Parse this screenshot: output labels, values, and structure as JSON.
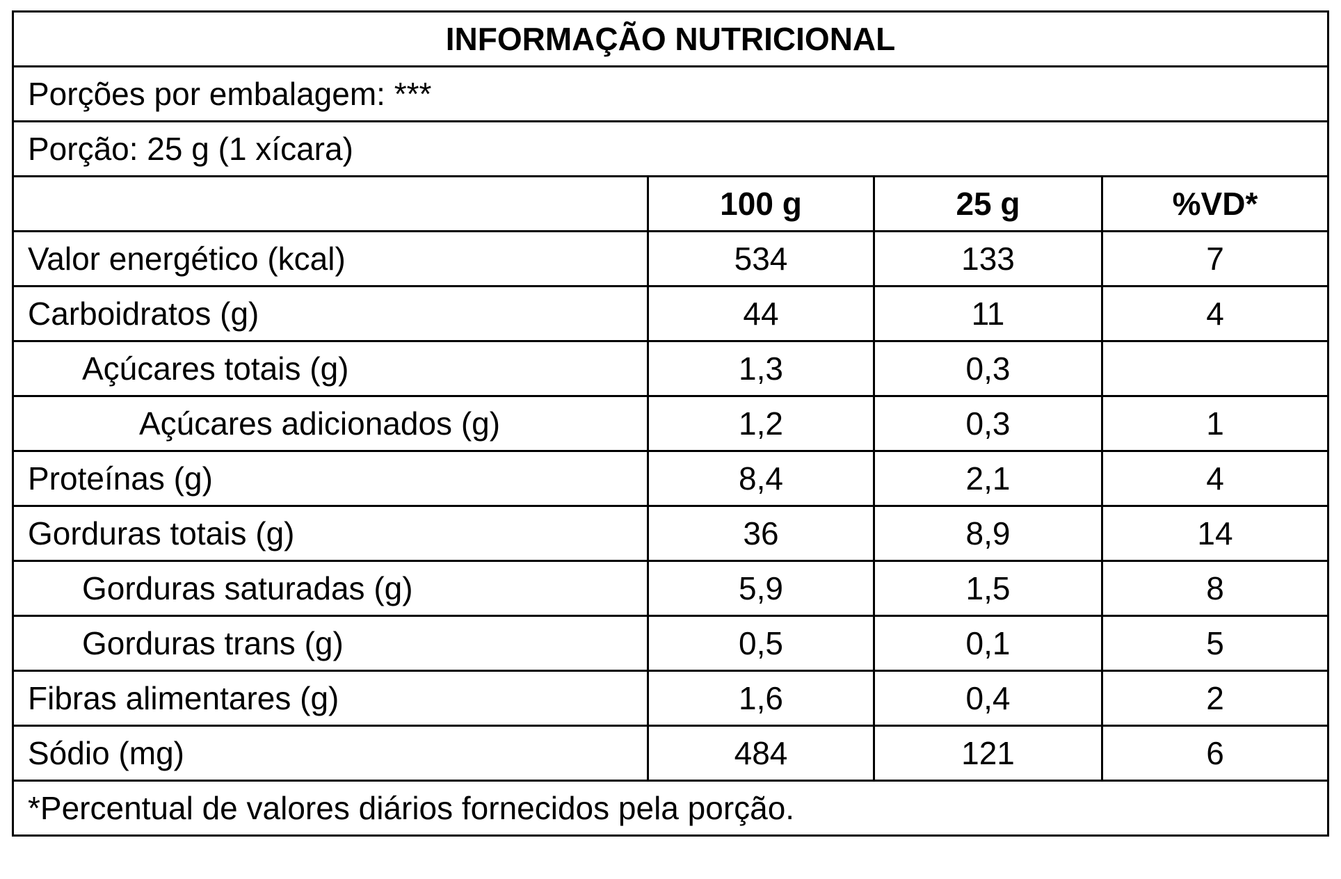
{
  "header": {
    "title": "INFORMAÇÃO NUTRICIONAL",
    "servings_per_package": "Porções por embalagem: ***",
    "serving_size": "Porção: 25 g (1 xícara)"
  },
  "table": {
    "columns": [
      "100 g",
      "25 g",
      "%VD*"
    ],
    "rows": [
      [
        "Valor energético (kcal)",
        "534",
        "133",
        "7"
      ],
      [
        "Carboidratos (g)",
        "44",
        "11",
        "4"
      ],
      [
        "Açúcares totais (g)",
        "1,3",
        "0,3",
        null
      ],
      [
        "Açúcares adicionados (g)",
        "1,2",
        "0,3",
        "1"
      ],
      [
        "Proteínas (g)",
        "8,4",
        "2,1",
        "4"
      ],
      [
        "Gorduras totais (g)",
        "36",
        "8,9",
        "14"
      ],
      [
        "Gorduras saturadas (g)",
        "5,9",
        "1,5",
        "8"
      ],
      [
        "Gorduras trans (g)",
        "0,5",
        "0,1",
        "5"
      ],
      [
        "Fibras alimentares (g)",
        "1,6",
        "0,4",
        "2"
      ],
      [
        "Sódio (mg)",
        "484",
        "121",
        "6"
      ]
    ]
  },
  "footnote": "*Percentual de valores diários fornecidos pela porção."
}
